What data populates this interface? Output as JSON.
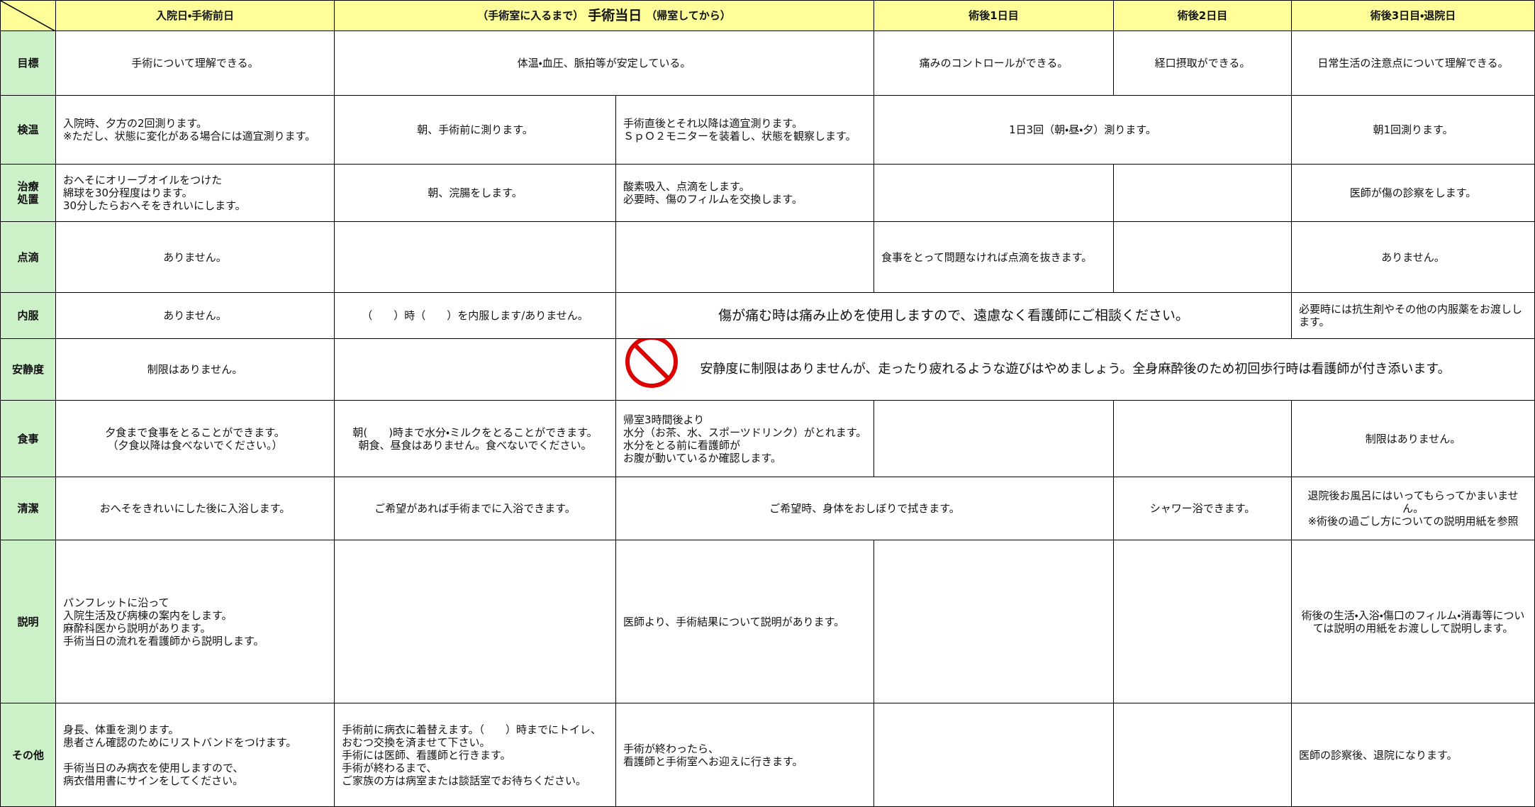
{
  "header": {
    "cells": [
      "入院日・手術前日",
      {
        "prefix": "（手術室に入るまで）",
        "main": "手術当日",
        "suffix": "（帰室してから）"
      },
      "術後1日目",
      "術後2日目",
      "術後3日目・退院日"
    ]
  },
  "rows": [
    {
      "label": "目標",
      "cells": [
        "手術について理解できる。",
        "体温・血圧、脈拍等が安定している。",
        "痛みのコントロールができる。",
        "経口摂取ができる。",
        "日常生活の注意点について理解できる。"
      ]
    },
    {
      "label": "検温",
      "cells": [
        "入院時、夕方の2回測ります。\n※ただし、状態に変化がある場合には適宜測ります。",
        "朝、手術前に測ります。",
        "手術直後とそれ以降は適宜測ります。\nＳｐＯ２モニターを装着し、状態を観察します。",
        "1日3回（朝・昼・夕）測ります。",
        "朝1回測ります。"
      ]
    },
    {
      "label": "治療\n処置",
      "cells": [
        "おへそにオリーブオイルをつけた\n綿球を30分程度はります。\n30分したらおへそをきれいにします。",
        "朝、浣腸をします。",
        "酸素吸入、点滴をします。\n必要時、傷のフィルムを交換します。",
        "医師が傷の診察をします。"
      ]
    },
    {
      "label": "点滴",
      "cells": [
        "ありません。",
        "食事をとって問題なければ点滴を抜きます。",
        "ありません。"
      ]
    },
    {
      "label": "内服",
      "cells": [
        "ありません。",
        "（　　）時（　　）を内服します/ありません。",
        "傷が痛む時は痛み止めを使用しますので、遠慮なく看護師にご相談ください。",
        "必要時には抗生剤やその他の内服薬をお渡しします。"
      ]
    },
    {
      "label": "安静度",
      "cells": [
        "制限はありません。",
        "安静度に制限はありませんが、走ったり疲れるような遊びはやめましょう。全身麻酔後のため初回歩行時は看護師が付き添います。"
      ]
    },
    {
      "label": "食事",
      "cells": [
        "夕食まで食事をとることができます。\n（夕食以降は食べないでください。）",
        "朝(　　)時まで水分・ミルクをとることができます。\n朝食、昼食はありません。食べないでください。",
        "帰室3時間後より\n水分（お茶、水、スポーツドリンク）がとれます。　水分をとる前に看護師が\nお腹が動いているか確認します。",
        "制限はありません。"
      ]
    },
    {
      "label": "清潔",
      "cells": [
        "おへそをきれいにした後に入浴します。",
        "ご希望があれば手術までに入浴できます。",
        "ご希望時、身体をおしぼりで拭きます。",
        "シャワー浴できます。",
        "退院後お風呂にはいってもらってかまいません。\n※術後の過ごし方についての説明用紙を参照"
      ]
    },
    {
      "label": "説明",
      "cells": [
        "パンフレットに沿って\n入院生活及び病棟の案内をします。\n麻酔科医から説明があります。\n手術当日の流れを看護師から説明します。",
        "医師より、手術結果について説明があります。",
        "術後の生活・入浴・傷口のフィルム・消毒等については説明の用紙をお渡しして説明します。"
      ]
    },
    {
      "label": "その他",
      "cells": [
        "身長、体重を測ります。\n患者さん確認のためにリストバンドをつけます。\n\n手術当日のみ病衣を使用しますので、\n病衣借用書にサインをしてください。",
        "手術前に病衣に着替えます。（　　）時までにトイレ、おむつ交換を済ませて下さい。\n手術には医師、看護師と行きます。\n手術が終わるまで、\nご家族の方は病室または談話室でお待ちください。",
        "手術が終わったら、\n看護師と手術室へお迎えに行きます。",
        "医師の診察後、退院になります。"
      ]
    }
  ]
}
